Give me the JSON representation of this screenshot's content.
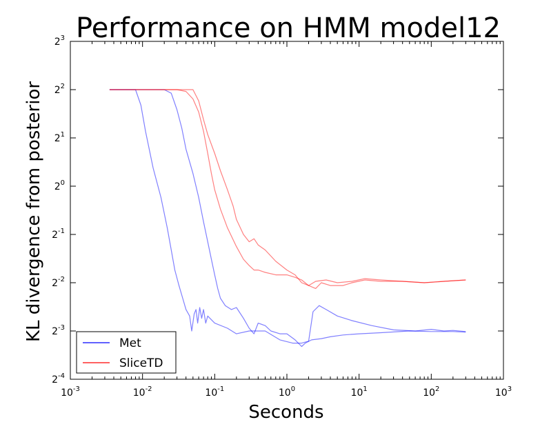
{
  "chart_data": {
    "type": "line",
    "title": "Performance on HMM model12",
    "xlabel": "Seconds",
    "ylabel": "KL divergence from posterior",
    "xscale": "log2-base10",
    "yscale": "log2",
    "xlim": [
      0.001,
      1000
    ],
    "ylim": [
      0.0625,
      8
    ],
    "xticks": [
      {
        "base": "10",
        "exp": "-3"
      },
      {
        "base": "10",
        "exp": "-2"
      },
      {
        "base": "10",
        "exp": "-1"
      },
      {
        "base": "10",
        "exp": "0"
      },
      {
        "base": "10",
        "exp": "1"
      },
      {
        "base": "10",
        "exp": "2"
      },
      {
        "base": "10",
        "exp": "3"
      }
    ],
    "yticks": [
      {
        "base": "2",
        "exp": "-4"
      },
      {
        "base": "2",
        "exp": "-3"
      },
      {
        "base": "2",
        "exp": "-2"
      },
      {
        "base": "2",
        "exp": "-1"
      },
      {
        "base": "2",
        "exp": "0"
      },
      {
        "base": "2",
        "exp": "1"
      },
      {
        "base": "2",
        "exp": "2"
      },
      {
        "base": "2",
        "exp": "3"
      }
    ],
    "legend_position": "lower-left",
    "grid": false,
    "series": [
      {
        "name": "Met",
        "color": "#0000ff",
        "runs": [
          {
            "x": [
              0.0035,
              0.006,
              0.008,
              0.0095,
              0.011,
              0.014,
              0.018,
              0.022,
              0.025,
              0.028,
              0.032,
              0.036,
              0.04,
              0.045,
              0.048,
              0.052,
              0.055,
              0.058,
              0.062,
              0.066,
              0.07,
              0.075,
              0.08,
              0.1,
              0.15,
              0.2,
              0.3,
              0.5,
              0.8,
              1.2,
              1.6,
              2.0,
              2.3,
              2.8,
              3.5,
              5,
              8,
              15,
              30,
              60,
              100,
              150,
              200,
              300
            ],
            "y": [
              4,
              4,
              4,
              3.2,
              2.2,
              1.3,
              0.85,
              0.55,
              0.4,
              0.3,
              0.24,
              0.2,
              0.17,
              0.155,
              0.125,
              0.16,
              0.17,
              0.14,
              0.175,
              0.15,
              0.17,
              0.14,
              0.155,
              0.14,
              0.13,
              0.12,
              0.125,
              0.125,
              0.11,
              0.105,
              0.105,
              0.108,
              0.165,
              0.18,
              0.17,
              0.155,
              0.145,
              0.135,
              0.127,
              0.125,
              0.128,
              0.125,
              0.126,
              0.124
            ]
          },
          {
            "x": [
              0.0035,
              0.01,
              0.02,
              0.025,
              0.03,
              0.035,
              0.04,
              0.05,
              0.06,
              0.07,
              0.08,
              0.09,
              0.1,
              0.11,
              0.12,
              0.14,
              0.17,
              0.2,
              0.25,
              0.3,
              0.35,
              0.4,
              0.5,
              0.6,
              0.8,
              1.0,
              1.3,
              1.6,
              1.8,
              2.2,
              3,
              4,
              6,
              10,
              20,
              50,
              100,
              200,
              300
            ],
            "y": [
              4,
              4,
              4,
              3.8,
              3.0,
              2.3,
              1.7,
              1.2,
              0.85,
              0.6,
              0.45,
              0.35,
              0.28,
              0.23,
              0.2,
              0.18,
              0.17,
              0.175,
              0.15,
              0.13,
              0.12,
              0.14,
              0.135,
              0.125,
              0.12,
              0.12,
              0.11,
              0.1,
              0.105,
              0.11,
              0.112,
              0.115,
              0.118,
              0.12,
              0.122,
              0.125,
              0.124,
              0.124,
              0.123
            ]
          }
        ]
      },
      {
        "name": "SliceTD",
        "color": "#ff0000",
        "runs": [
          {
            "x": [
              0.0035,
              0.02,
              0.03,
              0.04,
              0.05,
              0.06,
              0.07,
              0.08,
              0.09,
              0.1,
              0.12,
              0.15,
              0.2,
              0.25,
              0.3,
              0.35,
              0.4,
              0.5,
              0.7,
              1.0,
              1.3,
              1.6,
              2.0,
              2.5,
              3.5,
              5,
              8,
              12,
              20,
              40,
              80,
              150,
              300
            ],
            "y": [
              4,
              4,
              4,
              3.9,
              3.5,
              2.9,
              2.2,
              1.6,
              1.2,
              0.95,
              0.72,
              0.55,
              0.42,
              0.35,
              0.32,
              0.3,
              0.3,
              0.29,
              0.28,
              0.28,
              0.27,
              0.26,
              0.24,
              0.255,
              0.26,
              0.25,
              0.255,
              0.265,
              0.26,
              0.255,
              0.25,
              0.255,
              0.26
            ]
          },
          {
            "x": [
              0.0035,
              0.04,
              0.05,
              0.06,
              0.07,
              0.08,
              0.1,
              0.12,
              0.15,
              0.18,
              0.2,
              0.25,
              0.3,
              0.35,
              0.4,
              0.5,
              0.7,
              1.0,
              1.3,
              1.6,
              2.0,
              2.5,
              3,
              4,
              6,
              8,
              12,
              20,
              40,
              80,
              150,
              300
            ],
            "y": [
              4,
              4,
              4,
              3.4,
              2.6,
              2.1,
              1.6,
              1.25,
              0.95,
              0.75,
              0.62,
              0.5,
              0.45,
              0.47,
              0.43,
              0.4,
              0.34,
              0.3,
              0.28,
              0.25,
              0.24,
              0.23,
              0.25,
              0.24,
              0.24,
              0.25,
              0.26,
              0.255,
              0.255,
              0.25,
              0.255,
              0.26
            ]
          }
        ]
      }
    ]
  }
}
